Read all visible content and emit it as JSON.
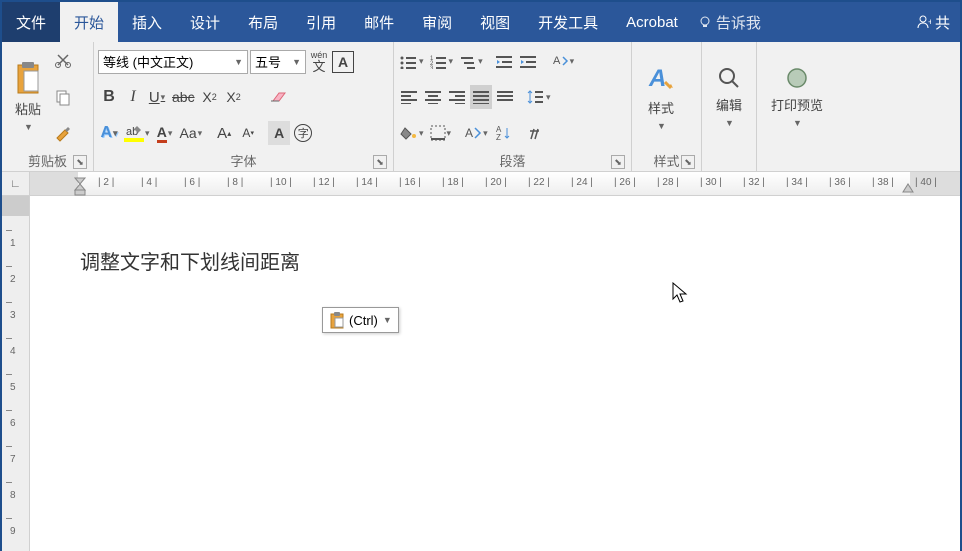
{
  "titlebar": {
    "tabs": [
      "文件",
      "开始",
      "插入",
      "设计",
      "布局",
      "引用",
      "邮件",
      "审阅",
      "视图",
      "开发工具",
      "Acrobat"
    ],
    "active_index": 1,
    "tell_me": "告诉我",
    "share": "共"
  },
  "clipboard": {
    "paste": "粘贴",
    "label": "剪贴板"
  },
  "font": {
    "name": "等线 (中文正文)",
    "size": "五号",
    "pinyin": "wén",
    "pinyin2": "文",
    "label": "字体"
  },
  "paragraph": {
    "label": "段落"
  },
  "styles": {
    "btn": "样式",
    "label": "样式"
  },
  "editing": {
    "btn": "编辑"
  },
  "print": {
    "btn": "打印预览"
  },
  "ruler": {
    "ticks": [
      "2",
      "4",
      "6",
      "8",
      "10",
      "12",
      "14",
      "16",
      "18",
      "20",
      "22",
      "24",
      "26",
      "28",
      "30",
      "32",
      "34",
      "36",
      "38",
      "40"
    ]
  },
  "vruler": {
    "ticks": [
      "1",
      "2",
      "3",
      "4",
      "5",
      "6",
      "7",
      "8",
      "9"
    ]
  },
  "document": {
    "text": "调整文字和下划线间距离"
  },
  "paste_options": {
    "label": "(Ctrl)"
  },
  "colors": {
    "brand": "#2b579a",
    "accent_orange": "#e8a33d",
    "accent_blue": "#4a90d9",
    "accent_red": "#c43e1c",
    "accent_yellow": "#f4b942"
  }
}
